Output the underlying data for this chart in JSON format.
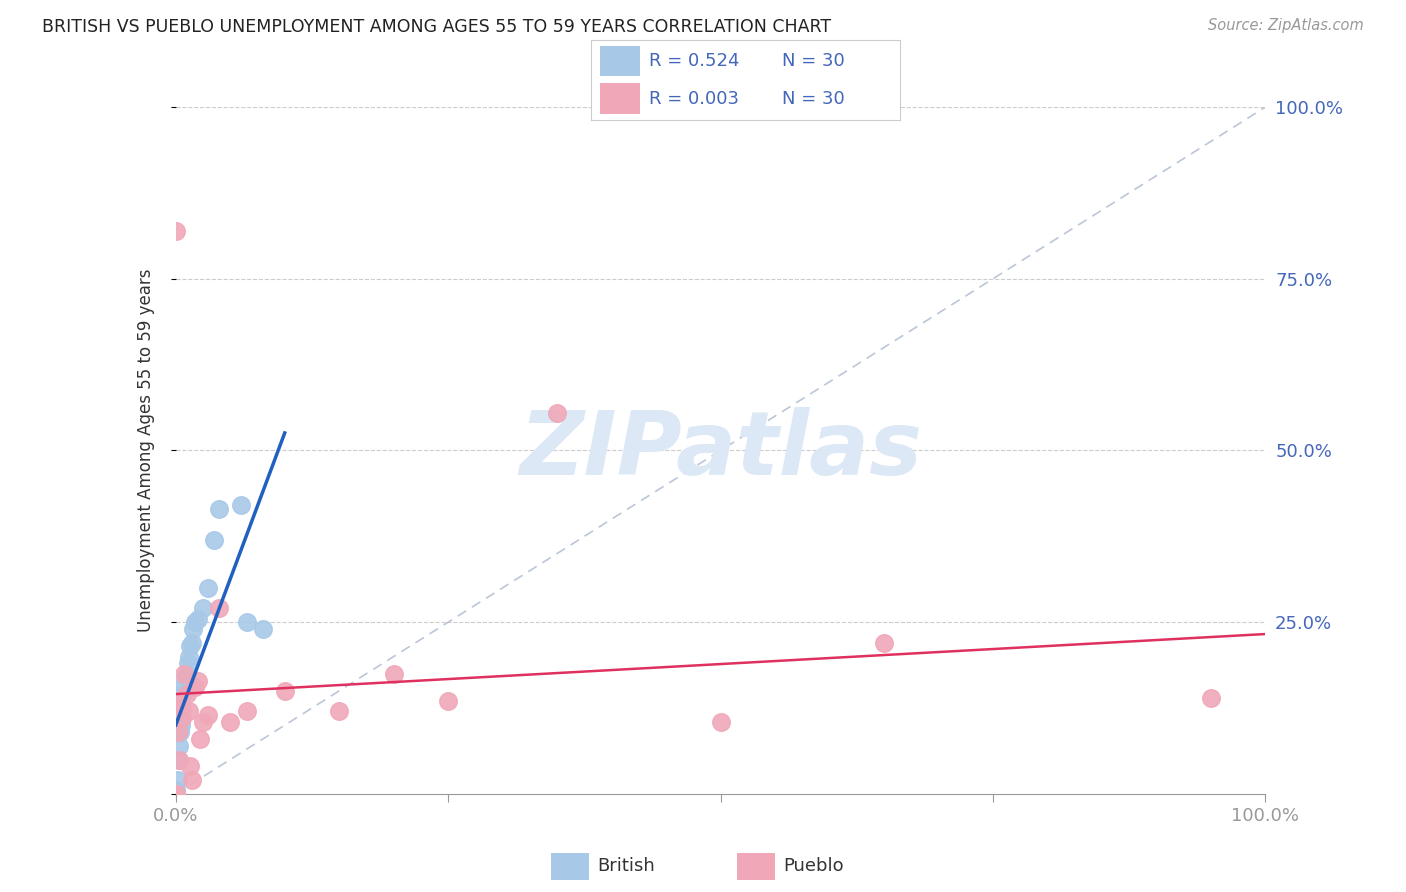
{
  "title": "BRITISH VS PUEBLO UNEMPLOYMENT AMONG AGES 55 TO 59 YEARS CORRELATION CHART",
  "source": "Source: ZipAtlas.com",
  "ylabel": "Unemployment Among Ages 55 to 59 years",
  "british_color": "#a8c8e8",
  "pueblo_color": "#f0a8b8",
  "british_line_color": "#2060c0",
  "pueblo_line_color": "#e03060",
  "diagonal_color": "#b0bcd0",
  "background_color": "#ffffff",
  "legend_british_R": "R = 0.524",
  "legend_british_N": "N = 30",
  "legend_pueblo_R": "R = 0.003",
  "legend_pueblo_N": "N = 30",
  "watermark_text": "ZIPatlas",
  "watermark_color": "#dce8f5",
  "british_data": [
    [
      0.0,
      0.0
    ],
    [
      0.0,
      0.0
    ],
    [
      0.0,
      0.0
    ],
    [
      0.0,
      0.005
    ],
    [
      0.002,
      0.02
    ],
    [
      0.003,
      0.05
    ],
    [
      0.003,
      0.07
    ],
    [
      0.004,
      0.09
    ],
    [
      0.004,
      0.095
    ],
    [
      0.005,
      0.1
    ],
    [
      0.005,
      0.12
    ],
    [
      0.006,
      0.125
    ],
    [
      0.007,
      0.145
    ],
    [
      0.008,
      0.16
    ],
    [
      0.009,
      0.17
    ],
    [
      0.01,
      0.175
    ],
    [
      0.011,
      0.19
    ],
    [
      0.012,
      0.2
    ],
    [
      0.013,
      0.215
    ],
    [
      0.015,
      0.22
    ],
    [
      0.016,
      0.24
    ],
    [
      0.018,
      0.25
    ],
    [
      0.02,
      0.255
    ],
    [
      0.025,
      0.27
    ],
    [
      0.03,
      0.3
    ],
    [
      0.035,
      0.37
    ],
    [
      0.04,
      0.415
    ],
    [
      0.06,
      0.42
    ],
    [
      0.065,
      0.25
    ],
    [
      0.08,
      0.24
    ]
  ],
  "pueblo_data": [
    [
      0.0,
      0.82
    ],
    [
      0.0,
      0.0
    ],
    [
      0.0,
      0.0
    ],
    [
      0.001,
      0.12
    ],
    [
      0.002,
      0.09
    ],
    [
      0.003,
      0.05
    ],
    [
      0.003,
      0.135
    ],
    [
      0.005,
      0.125
    ],
    [
      0.006,
      0.11
    ],
    [
      0.008,
      0.175
    ],
    [
      0.01,
      0.145
    ],
    [
      0.012,
      0.12
    ],
    [
      0.013,
      0.04
    ],
    [
      0.015,
      0.02
    ],
    [
      0.018,
      0.155
    ],
    [
      0.02,
      0.165
    ],
    [
      0.022,
      0.08
    ],
    [
      0.025,
      0.105
    ],
    [
      0.03,
      0.115
    ],
    [
      0.04,
      0.27
    ],
    [
      0.05,
      0.105
    ],
    [
      0.065,
      0.12
    ],
    [
      0.1,
      0.15
    ],
    [
      0.15,
      0.12
    ],
    [
      0.2,
      0.175
    ],
    [
      0.25,
      0.135
    ],
    [
      0.35,
      0.555
    ],
    [
      0.5,
      0.105
    ],
    [
      0.65,
      0.22
    ],
    [
      0.95,
      0.14
    ]
  ],
  "xlim": [
    0.0,
    1.0
  ],
  "ylim": [
    0.0,
    1.0
  ],
  "xtick_positions": [
    0.0,
    0.25,
    0.5,
    0.75,
    1.0
  ],
  "xtick_labels_show": [
    "0.0%",
    "",
    "",
    "",
    "100.0%"
  ],
  "ytick_positions": [
    0.0,
    0.25,
    0.5,
    0.75,
    1.0
  ],
  "ytick_labels_right": [
    "",
    "25.0%",
    "50.0%",
    "75.0%",
    "100.0%"
  ]
}
